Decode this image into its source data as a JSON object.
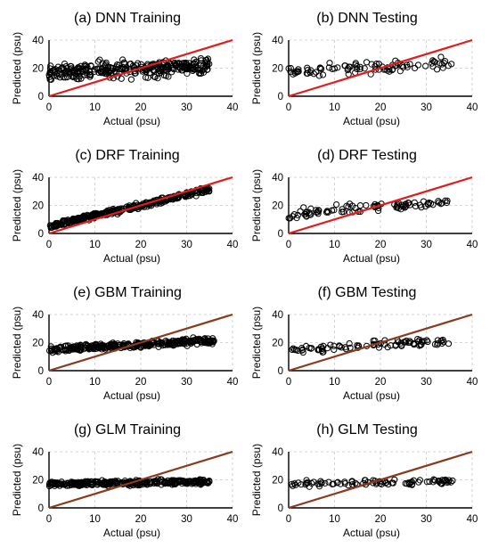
{
  "chart_data": [
    {
      "title": "(a) DNN Training",
      "type": "scatter",
      "xlabel": "Actual (psu)",
      "ylabel": "Predicted (psu)",
      "xlim": [
        0,
        40
      ],
      "ylim": [
        0,
        40
      ],
      "xticks": [
        "0",
        "10",
        "20",
        "30",
        "40"
      ],
      "yticks": [
        "0",
        "20",
        "40"
      ],
      "reference_line": {
        "x": [
          0,
          40
        ],
        "y": [
          0,
          40
        ],
        "color": "#e11d1d"
      },
      "series": [
        {
          "center": 17,
          "slope": 0.12,
          "spread": 5.5,
          "xmin": 0,
          "xmax": 35,
          "n": 300,
          "seed": 1
        }
      ]
    },
    {
      "title": "(b) DNN Testing",
      "type": "scatter",
      "xlabel": "Actual (psu)",
      "ylabel": "Predicted (psu)",
      "xlim": [
        0,
        40
      ],
      "ylim": [
        0,
        40
      ],
      "xticks": [
        "0",
        "10",
        "20",
        "30",
        "40"
      ],
      "yticks": [
        "0",
        "20",
        "40"
      ],
      "reference_line": {
        "x": [
          0,
          40
        ],
        "y": [
          0,
          40
        ],
        "color": "#e11d1d"
      },
      "series": [
        {
          "center": 17,
          "slope": 0.2,
          "spread": 4.5,
          "xmin": 0,
          "xmax": 36,
          "n": 90,
          "seed": 2
        }
      ]
    },
    {
      "title": "(c) DRF Training",
      "type": "scatter",
      "xlabel": "Actual (psu)",
      "ylabel": "Predicted (psu)",
      "xlim": [
        0,
        40
      ],
      "ylim": [
        0,
        40
      ],
      "xticks": [
        "0",
        "10",
        "20",
        "30",
        "40"
      ],
      "yticks": [
        "0",
        "20",
        "40"
      ],
      "reference_line": {
        "x": [
          0,
          40
        ],
        "y": [
          0,
          40
        ],
        "color": "#e11d1d"
      },
      "series": [
        {
          "center": 5,
          "slope": 0.75,
          "spread": 1.8,
          "xmin": 0,
          "xmax": 35,
          "n": 320,
          "seed": 3
        }
      ]
    },
    {
      "title": "(d) DRF Testing",
      "type": "scatter",
      "xlabel": "Actual (psu)",
      "ylabel": "Predicted (psu)",
      "xlim": [
        0,
        40
      ],
      "ylim": [
        0,
        40
      ],
      "xticks": [
        "0",
        "10",
        "20",
        "30",
        "40"
      ],
      "yticks": [
        "0",
        "20",
        "40"
      ],
      "reference_line": {
        "x": [
          0,
          40
        ],
        "y": [
          0,
          40
        ],
        "color": "#e11d1d"
      },
      "series": [
        {
          "center": 14,
          "slope": 0.25,
          "spread": 3.2,
          "xmin": 0,
          "xmax": 35,
          "n": 90,
          "seed": 4
        }
      ]
    },
    {
      "title": "(e) GBM Training",
      "type": "scatter",
      "xlabel": "Actual (psu)",
      "ylabel": "Predicted (psu)",
      "xlim": [
        0,
        40
      ],
      "ylim": [
        0,
        40
      ],
      "xticks": [
        "0",
        "10",
        "20",
        "30",
        "40"
      ],
      "yticks": [
        "0",
        "20",
        "40"
      ],
      "reference_line": {
        "x": [
          0,
          40
        ],
        "y": [
          0,
          40
        ],
        "color": "#8b3a1e"
      },
      "series": [
        {
          "center": 15,
          "slope": 0.18,
          "spread": 2.2,
          "xmin": 0,
          "xmax": 36,
          "n": 320,
          "seed": 5
        }
      ]
    },
    {
      "title": "(f) GBM Testing",
      "type": "scatter",
      "xlabel": "Actual (psu)",
      "ylabel": "Predicted (psu)",
      "xlim": [
        0,
        40
      ],
      "ylim": [
        0,
        40
      ],
      "xticks": [
        "0",
        "10",
        "20",
        "30",
        "40"
      ],
      "yticks": [
        "0",
        "20",
        "40"
      ],
      "reference_line": {
        "x": [
          0,
          40
        ],
        "y": [
          0,
          40
        ],
        "color": "#8b3a1e"
      },
      "series": [
        {
          "center": 15,
          "slope": 0.18,
          "spread": 2.5,
          "xmin": 0,
          "xmax": 35,
          "n": 90,
          "seed": 6
        }
      ]
    },
    {
      "title": "(g) GLM Training",
      "type": "scatter",
      "xlabel": "Actual (psu)",
      "ylabel": "Predicted (psu)",
      "xlim": [
        0,
        40
      ],
      "ylim": [
        0,
        40
      ],
      "xticks": [
        "0",
        "10",
        "20",
        "30",
        "40"
      ],
      "yticks": [
        "0",
        "20",
        "40"
      ],
      "reference_line": {
        "x": [
          0,
          40
        ],
        "y": [
          0,
          40
        ],
        "color": "#8b3a1e"
      },
      "series": [
        {
          "center": 17,
          "slope": 0.05,
          "spread": 1.8,
          "xmin": 0,
          "xmax": 35,
          "n": 320,
          "seed": 7
        }
      ]
    },
    {
      "title": "(h) GLM Testing",
      "type": "scatter",
      "xlabel": "Actual (psu)",
      "ylabel": "Predicted (psu)",
      "xlim": [
        0,
        40
      ],
      "ylim": [
        0,
        40
      ],
      "xticks": [
        "0",
        "10",
        "20",
        "30",
        "40"
      ],
      "yticks": [
        "0",
        "20",
        "40"
      ],
      "reference_line": {
        "x": [
          0,
          40
        ],
        "y": [
          0,
          40
        ],
        "color": "#8b3a1e"
      },
      "series": [
        {
          "center": 17,
          "slope": 0.05,
          "spread": 2.0,
          "xmin": 0,
          "xmax": 36,
          "n": 90,
          "seed": 8
        }
      ]
    }
  ]
}
